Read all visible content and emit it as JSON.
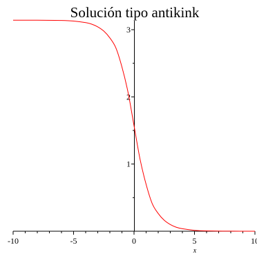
{
  "chart_data": {
    "type": "line",
    "title": "Solución tipo antikink",
    "xlabel": "x",
    "ylabel": "",
    "xlim": [
      -10,
      10
    ],
    "ylim": [
      0,
      3.2
    ],
    "grid": false,
    "x_ticks": [
      -10,
      -5,
      0,
      5,
      10
    ],
    "x_tick_labels": [
      "-10",
      "-5",
      "0",
      "5",
      "10"
    ],
    "y_ticks": [
      1,
      2,
      3
    ],
    "y_tick_labels": [
      "1",
      "2",
      "3"
    ],
    "series": [
      {
        "color": "#ff0000",
        "x": [
          -10,
          -8,
          -6,
          -5,
          -4,
          -3.5,
          -3,
          -2.5,
          -2,
          -1.5,
          -1,
          -0.5,
          0,
          0.5,
          1,
          1.5,
          2,
          2.5,
          3,
          3.5,
          4,
          5,
          6,
          8,
          10
        ],
        "y": [
          3.1413,
          3.1409,
          3.137,
          3.1281,
          3.1049,
          3.0825,
          3.0422,
          2.979,
          2.8776,
          2.7284,
          2.4448,
          2.0713,
          1.5708,
          1.0703,
          0.6968,
          0.4132,
          0.264,
          0.1626,
          0.0994,
          0.0591,
          0.0367,
          0.0135,
          0.005,
          0.0007,
          0.0001
        ]
      }
    ]
  }
}
